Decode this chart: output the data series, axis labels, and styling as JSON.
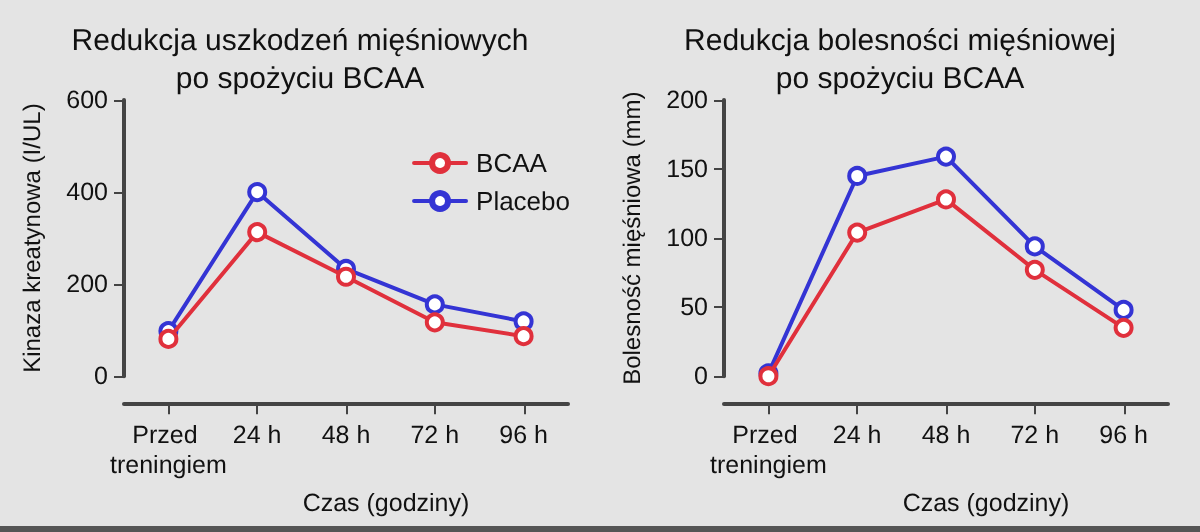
{
  "chart_data": [
    {
      "type": "line",
      "title": "Redukcja uszkodzeń mięśniowych\npo spożyciu BCAA",
      "xlabel": "Czas (godziny)",
      "ylabel": "Kinaza kreatynowa (I/UL)",
      "categories": [
        "Przed treningiem",
        "24 h",
        "48 h",
        "72 h",
        "96 h"
      ],
      "series": [
        {
          "name": "BCAA",
          "color": "#e0303c",
          "values": [
            81,
            313,
            216,
            117,
            87
          ]
        },
        {
          "name": "Placebo",
          "color": "#3434d4",
          "values": [
            98,
            400,
            233,
            156,
            119
          ]
        }
      ],
      "ylim": [
        0,
        600
      ],
      "yticks": [
        0,
        200,
        400,
        600
      ],
      "grid": false,
      "legend": "top right",
      "marker": "circle",
      "line_style": "solid"
    },
    {
      "type": "line",
      "title": "Redukcja bolesności mięśniowej\npo spożyciu BCAA",
      "xlabel": "Czas (godziny)",
      "ylabel": "Bolesność mięśniowa (mm)",
      "categories": [
        "Przed treningiem",
        "24 h",
        "48 h",
        "72 h",
        "96 h"
      ],
      "series": [
        {
          "color": "#e0303c",
          "values": [
            0,
            104,
            128,
            77,
            35
          ]
        },
        {
          "color": "#3434d4",
          "values": [
            2,
            145,
            159,
            94,
            48
          ]
        }
      ],
      "ylim": [
        0,
        200
      ],
      "yticks": [
        0,
        50,
        100,
        150,
        200
      ],
      "grid": false,
      "legend": false,
      "marker": "circle",
      "line_style": "solid"
    }
  ]
}
